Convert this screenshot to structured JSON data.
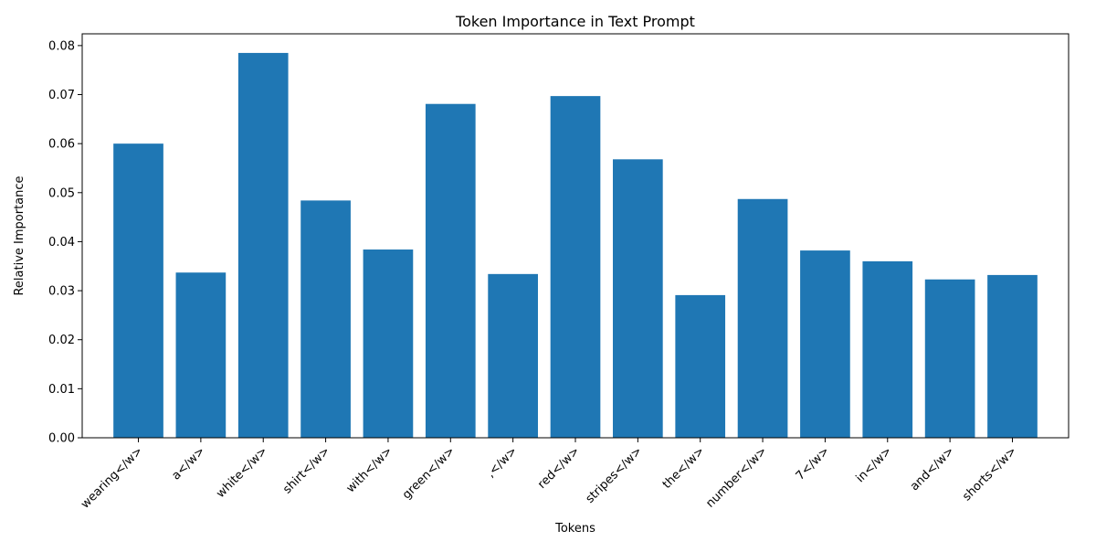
{
  "chart_data": {
    "type": "bar",
    "title": "Token Importance in Text Prompt",
    "xlabel": "Tokens",
    "ylabel": "Relative Importance",
    "ylim": [
      0,
      0.0824
    ],
    "yticks": [
      0.0,
      0.01,
      0.02,
      0.03,
      0.04,
      0.05,
      0.06,
      0.07,
      0.08
    ],
    "ytick_labels": [
      "0.00",
      "0.01",
      "0.02",
      "0.03",
      "0.04",
      "0.05",
      "0.06",
      "0.07",
      "0.08"
    ],
    "categories": [
      "wearing</w>",
      "a</w>",
      "white</w>",
      "shirt</w>",
      "with</w>",
      "green</w>",
      ",</w>",
      "red</w>",
      "stripes</w>",
      "the</w>",
      "number</w>",
      "7</w>",
      "in</w>",
      "and</w>",
      "shorts</w>"
    ],
    "values": [
      0.06,
      0.0337,
      0.0785,
      0.0484,
      0.0384,
      0.0681,
      0.0334,
      0.0697,
      0.0568,
      0.0291,
      0.0487,
      0.0382,
      0.036,
      0.0323,
      0.0332
    ],
    "bar_color": "#1f77b4",
    "grid": false,
    "legend": "none"
  }
}
